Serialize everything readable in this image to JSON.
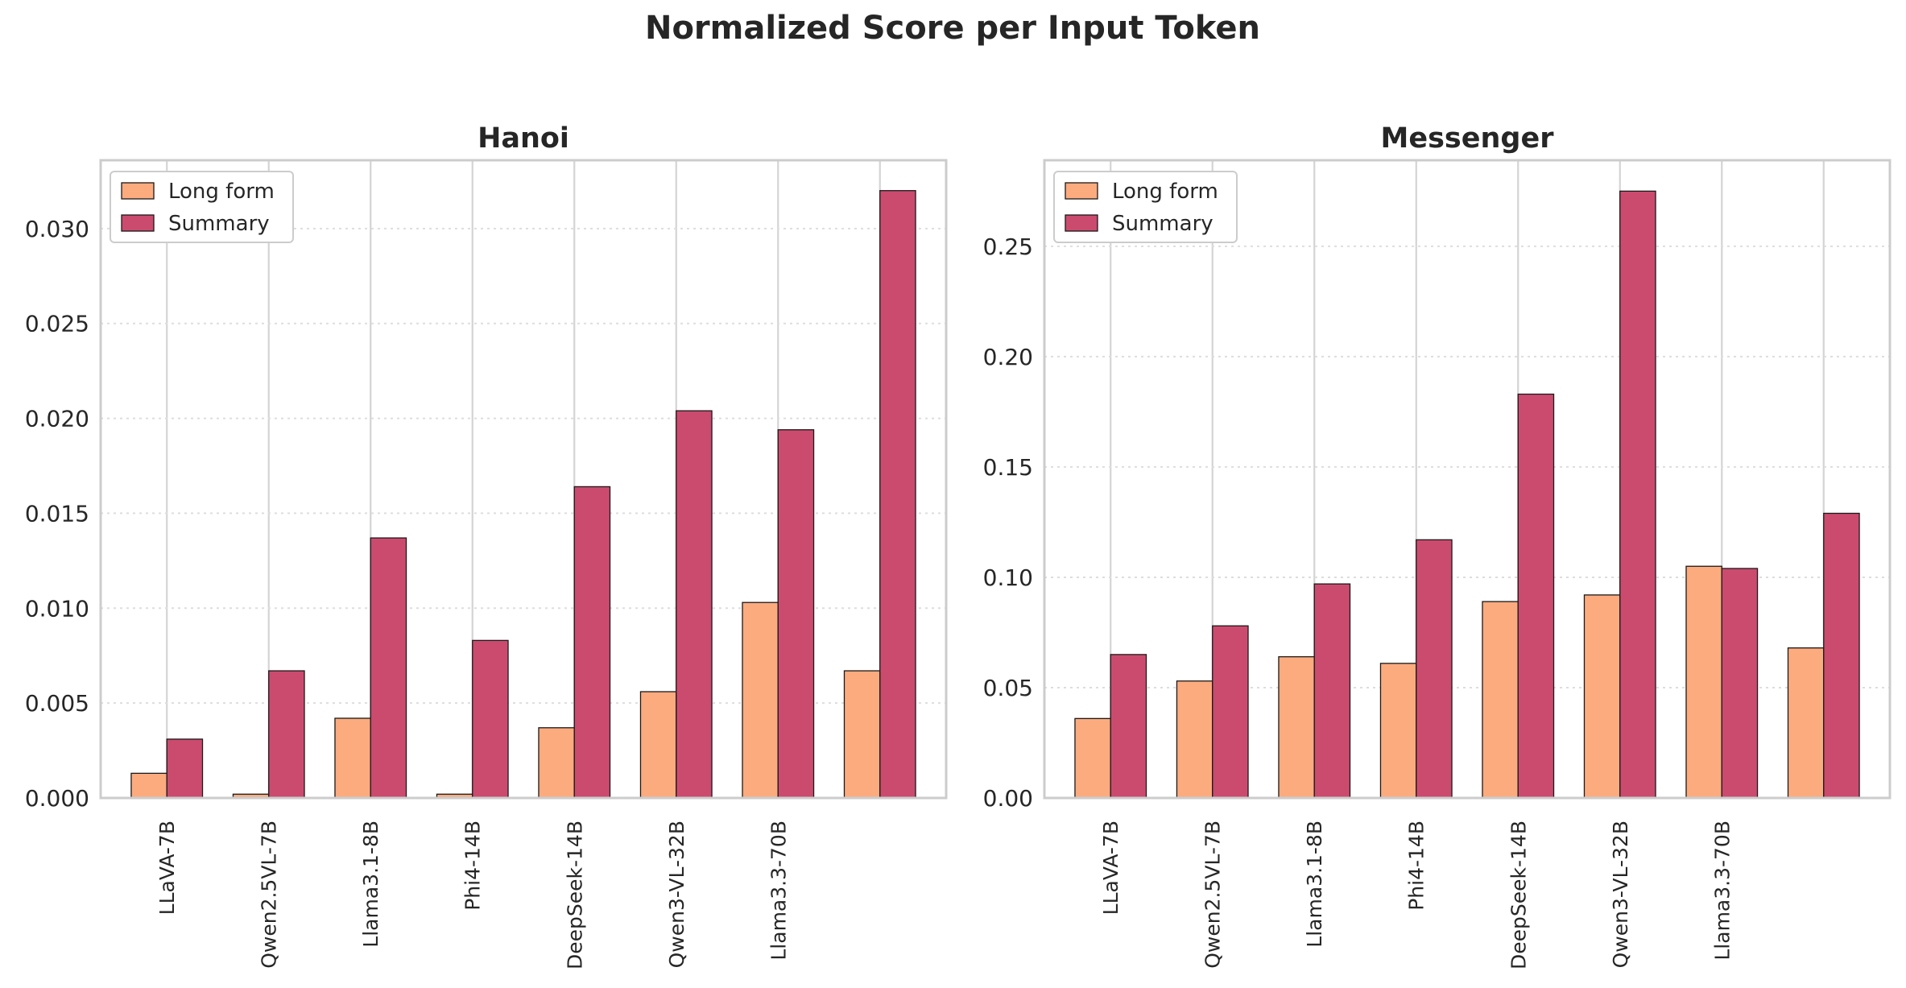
{
  "figure_title": "Normalized Score per Input Token",
  "colors": {
    "long_form": "#FCAB7F",
    "summary": "#CB4B6E",
    "bar_edge": "#1a1a1a",
    "frame": "#cccccc",
    "grid_x": "#d4d4d4",
    "grid_y": "#dddddd"
  },
  "chart_data": [
    {
      "type": "bar",
      "title": "Hanoi",
      "categories": [
        "LLaVA-7B",
        "Qwen2.5VL-7B",
        "Llama3.1-8B",
        "Phi4-14B",
        "DeepSeek-14B",
        "Qwen3-VL-32B",
        "Llama3.3-70B",
        ""
      ],
      "series": [
        {
          "name": "Long form",
          "values": [
            0.0013,
            0.0002,
            0.0042,
            0.0002,
            0.0037,
            0.0056,
            0.0103,
            0.0067
          ]
        },
        {
          "name": "Summary",
          "values": [
            0.0031,
            0.0067,
            0.0137,
            0.0083,
            0.0164,
            0.0204,
            0.0194,
            0.032
          ]
        }
      ],
      "ylim": [
        0,
        0.0336
      ],
      "yticks": [
        0.0,
        0.005,
        0.01,
        0.015,
        0.02,
        0.025,
        0.03
      ],
      "ytick_labels": [
        "0.000",
        "0.005",
        "0.010",
        "0.015",
        "0.020",
        "0.025",
        "0.030"
      ],
      "xlabel": "",
      "ylabel": "",
      "legend": "top-left",
      "grid": true
    },
    {
      "type": "bar",
      "title": "Messenger",
      "categories": [
        "LLaVA-7B",
        "Qwen2.5VL-7B",
        "Llama3.1-8B",
        "Phi4-14B",
        "DeepSeek-14B",
        "Qwen3-VL-32B",
        "Llama3.3-70B",
        ""
      ],
      "series": [
        {
          "name": "Long form",
          "values": [
            0.036,
            0.053,
            0.064,
            0.061,
            0.089,
            0.092,
            0.105,
            0.068
          ]
        },
        {
          "name": "Summary",
          "values": [
            0.065,
            0.078,
            0.097,
            0.117,
            0.183,
            0.275,
            0.104,
            0.129
          ]
        }
      ],
      "ylim": [
        0,
        0.289
      ],
      "yticks": [
        0.0,
        0.05,
        0.1,
        0.15,
        0.2,
        0.25
      ],
      "ytick_labels": [
        "0.00",
        "0.05",
        "0.10",
        "0.15",
        "0.20",
        "0.25"
      ],
      "xlabel": "",
      "ylabel": "",
      "legend": "top-left",
      "grid": true
    }
  ]
}
